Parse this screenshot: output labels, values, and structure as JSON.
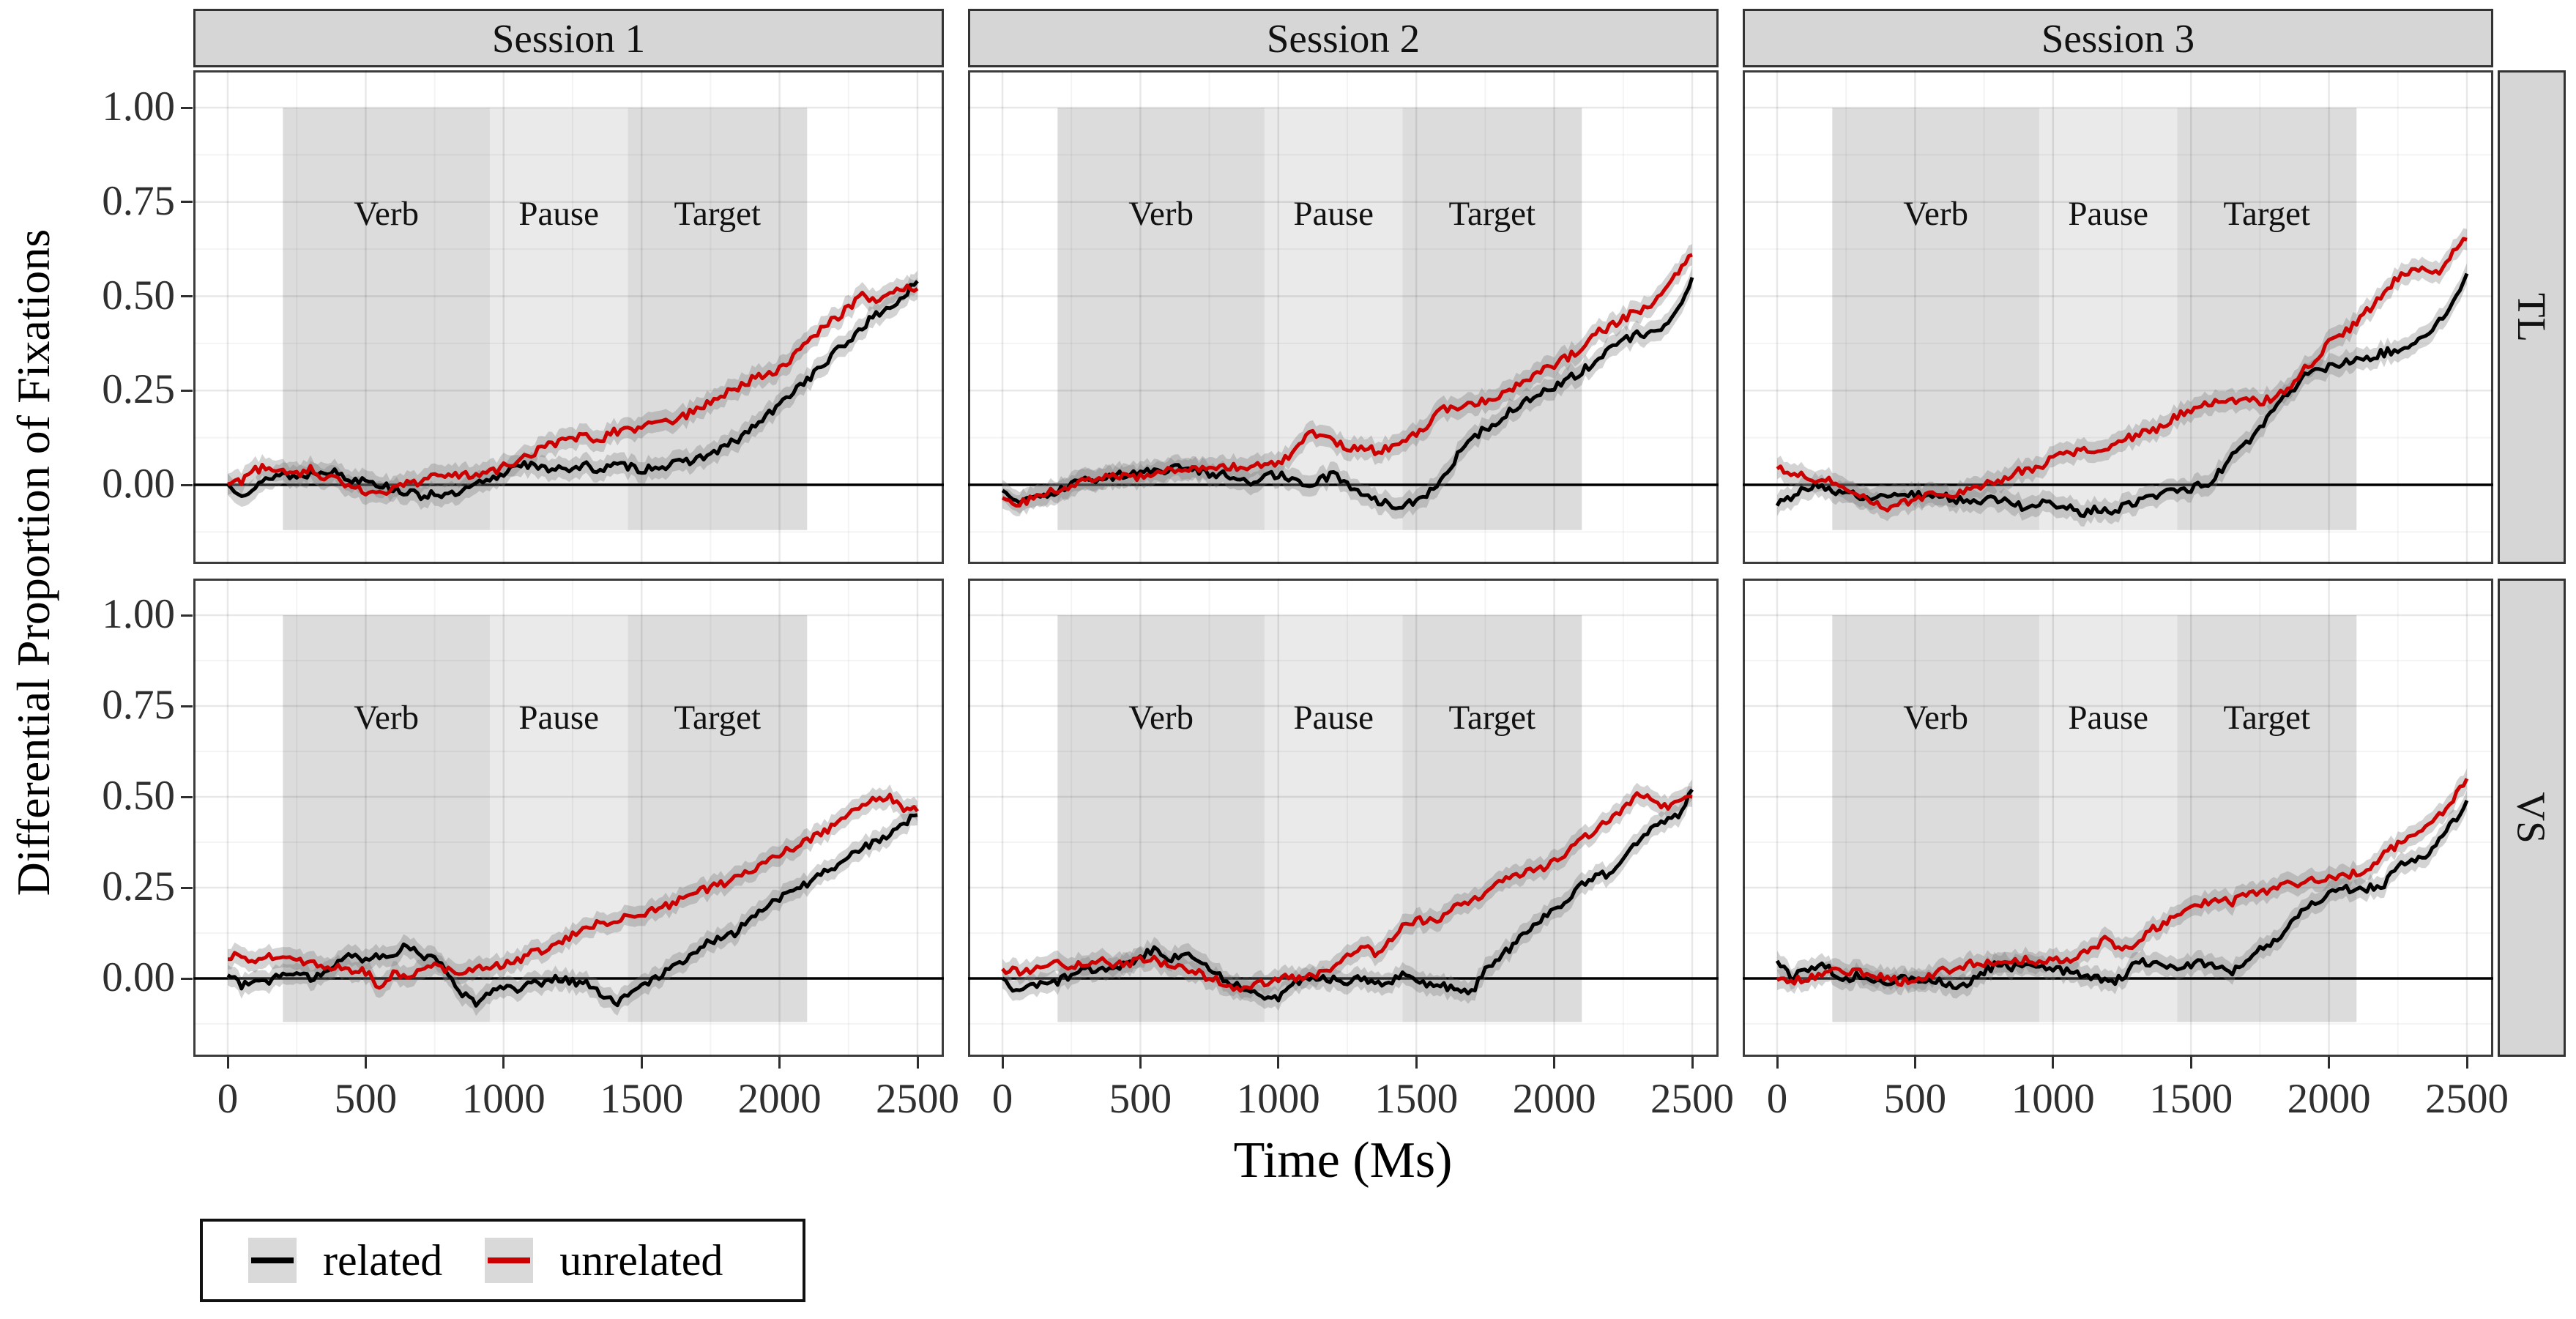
{
  "figure": {
    "y_axis_title": "Differential Proportion of Fixations",
    "x_axis_title": "Time (Ms)"
  },
  "chart_data": {
    "type": "line",
    "title": "",
    "xlabel": "Time (Ms)",
    "ylabel": "Differential Proportion of Fixations",
    "facets": {
      "columns": [
        "Session 1",
        "Session 2",
        "Session 3"
      ],
      "rows": [
        "TL",
        "VS"
      ]
    },
    "x": {
      "label": "Time (Ms)",
      "ticks": [
        "0",
        "500",
        "1000",
        "1500",
        "2000",
        "2500"
      ],
      "tick_values": [
        0,
        500,
        1000,
        1500,
        2000,
        2500
      ],
      "domain": [
        -125,
        2625
      ]
    },
    "y": {
      "label": "Differential Proportion of Fixations",
      "ticks": [
        "1.00",
        "0.75",
        "0.50",
        "0.25",
        "0.00"
      ],
      "tick_values": [
        1.0,
        0.75,
        0.5,
        0.25,
        0.0
      ],
      "domain": [
        -0.21,
        1.1
      ]
    },
    "grid": "on",
    "zero_line": 0,
    "time_step_ms": 50,
    "se_halfwidth": 0.028,
    "regions": [
      {
        "label": "Verb",
        "start": 200,
        "end": 950,
        "shade": "dark"
      },
      {
        "label": "Pause",
        "start": 950,
        "end": 1450,
        "shade": "light"
      },
      {
        "label": "Target",
        "start": 1450,
        "end": 2100,
        "shade": "dark"
      }
    ],
    "region_label_y": 0.72,
    "legend": {
      "position": "bottom-left",
      "entries": [
        {
          "label": "related",
          "color": "#000000"
        },
        {
          "label": "unrelated",
          "color": "#CC0000"
        }
      ]
    },
    "colors": {
      "related": "#000000",
      "unrelated": "#CC0000",
      "ribbon": "#787878",
      "strip_bg": "#d6d6d6",
      "region_dark": "#dcdcdc",
      "region_light": "#eaeaea",
      "zero_line": "#000000"
    },
    "series": [
      {
        "facet_col": "Session 1",
        "facet_row": "TL",
        "name": "related",
        "values": [
          0,
          -0.02,
          -0.01,
          0.02,
          0.03,
          0.02,
          0.03,
          0.04,
          0.03,
          0.01,
          0.02,
          0,
          -0.01,
          -0.02,
          -0.03,
          -0.02,
          -0.03,
          -0.02,
          0,
          0.01,
          0.03,
          0.06,
          0.05,
          0.04,
          0.05,
          0.04,
          0.05,
          0.04,
          0.05,
          0.05,
          0.04,
          0.05,
          0.05,
          0.06,
          0.07,
          0.08,
          0.1,
          0.12,
          0.15,
          0.18,
          0.21,
          0.25,
          0.28,
          0.31,
          0.35,
          0.38,
          0.42,
          0.45,
          0.47,
          0.5,
          0.54
        ]
      },
      {
        "facet_col": "Session 1",
        "facet_row": "TL",
        "name": "unrelated",
        "values": [
          0,
          0.01,
          0.04,
          0.05,
          0.04,
          0.03,
          0.04,
          0.02,
          0.02,
          -0.01,
          -0.02,
          -0.02,
          -0.01,
          0,
          0.01,
          0.02,
          0.02,
          0.03,
          0.02,
          0.03,
          0.05,
          0.06,
          0.08,
          0.1,
          0.11,
          0.12,
          0.13,
          0.12,
          0.14,
          0.15,
          0.15,
          0.16,
          0.17,
          0.18,
          0.2,
          0.22,
          0.24,
          0.26,
          0.28,
          0.29,
          0.31,
          0.34,
          0.38,
          0.41,
          0.44,
          0.47,
          0.5,
          0.49,
          0.51,
          0.52,
          0.52
        ]
      },
      {
        "facet_col": "Session 2",
        "facet_row": "TL",
        "name": "related",
        "values": [
          -0.02,
          -0.04,
          -0.04,
          -0.03,
          -0.02,
          0,
          0.01,
          0.01,
          0.02,
          0.03,
          0.03,
          0.04,
          0.04,
          0.05,
          0.04,
          0.03,
          0.03,
          0.02,
          0.01,
          0.02,
          0.03,
          0.01,
          0,
          0.01,
          0.03,
          0,
          -0.02,
          -0.04,
          -0.05,
          -0.06,
          -0.04,
          -0.02,
          0.02,
          0.08,
          0.12,
          0.15,
          0.17,
          0.2,
          0.22,
          0.24,
          0.26,
          0.28,
          0.3,
          0.33,
          0.36,
          0.38,
          0.4,
          0.4,
          0.42,
          0.46,
          0.55
        ]
      },
      {
        "facet_col": "Session 2",
        "facet_row": "TL",
        "name": "unrelated",
        "values": [
          -0.03,
          -0.05,
          -0.04,
          -0.02,
          -0.01,
          0,
          0.01,
          0.02,
          0.02,
          0.02,
          0.02,
          0.03,
          0.04,
          0.04,
          0.04,
          0.05,
          0.05,
          0.05,
          0.05,
          0.05,
          0.06,
          0.08,
          0.13,
          0.14,
          0.11,
          0.1,
          0.1,
          0.09,
          0.1,
          0.12,
          0.13,
          0.17,
          0.2,
          0.21,
          0.22,
          0.22,
          0.24,
          0.26,
          0.28,
          0.3,
          0.32,
          0.34,
          0.36,
          0.4,
          0.42,
          0.44,
          0.46,
          0.48,
          0.52,
          0.56,
          0.61
        ]
      },
      {
        "facet_col": "Session 3",
        "facet_row": "TL",
        "name": "related",
        "values": [
          -0.05,
          -0.03,
          -0.01,
          0,
          -0.02,
          -0.01,
          -0.04,
          -0.03,
          -0.04,
          -0.02,
          -0.03,
          -0.02,
          -0.03,
          -0.04,
          -0.05,
          -0.04,
          -0.04,
          -0.05,
          -0.06,
          -0.05,
          -0.05,
          -0.06,
          -0.08,
          -0.06,
          -0.07,
          -0.06,
          -0.05,
          -0.03,
          -0.02,
          -0.02,
          -0.01,
          0,
          0.03,
          0.08,
          0.11,
          0.15,
          0.2,
          0.24,
          0.28,
          0.3,
          0.31,
          0.32,
          0.33,
          0.34,
          0.35,
          0.36,
          0.37,
          0.4,
          0.43,
          0.48,
          0.56
        ]
      },
      {
        "facet_col": "Session 3",
        "facet_row": "TL",
        "name": "unrelated",
        "values": [
          0.05,
          0.03,
          0.02,
          0.01,
          0.01,
          -0.01,
          -0.03,
          -0.05,
          -0.07,
          -0.05,
          -0.04,
          -0.02,
          -0.02,
          -0.03,
          -0.01,
          0,
          0.01,
          0.03,
          0.04,
          0.05,
          0.07,
          0.08,
          0.09,
          0.08,
          0.1,
          0.12,
          0.13,
          0.14,
          0.16,
          0.18,
          0.2,
          0.21,
          0.22,
          0.22,
          0.23,
          0.22,
          0.23,
          0.25,
          0.3,
          0.33,
          0.38,
          0.4,
          0.43,
          0.47,
          0.51,
          0.55,
          0.57,
          0.58,
          0.56,
          0.62,
          0.65
        ]
      },
      {
        "facet_col": "Session 1",
        "facet_row": "VS",
        "name": "related",
        "values": [
          0.02,
          -0.02,
          -0.01,
          -0.01,
          0.02,
          0.01,
          0,
          0.02,
          0.04,
          0.07,
          0.05,
          0.06,
          0.07,
          0.09,
          0.06,
          0.07,
          0,
          -0.04,
          -0.07,
          -0.04,
          -0.03,
          -0.03,
          -0.01,
          -0.01,
          0,
          -0.01,
          -0.01,
          -0.04,
          -0.07,
          -0.05,
          -0.02,
          0,
          0.03,
          0.05,
          0.08,
          0.1,
          0.11,
          0.13,
          0.17,
          0.2,
          0.22,
          0.24,
          0.26,
          0.29,
          0.3,
          0.34,
          0.36,
          0.38,
          0.39,
          0.43,
          0.45
        ]
      },
      {
        "facet_col": "Session 1",
        "facet_row": "VS",
        "name": "unrelated",
        "values": [
          0.06,
          0.06,
          0.05,
          0.06,
          0.05,
          0.05,
          0.04,
          0.03,
          0.03,
          0.02,
          0.02,
          -0.03,
          0.02,
          0,
          0.02,
          0.05,
          0.02,
          0.02,
          0.03,
          0.03,
          0.04,
          0.05,
          0.07,
          0.08,
          0.1,
          0.12,
          0.14,
          0.15,
          0.15,
          0.17,
          0.18,
          0.19,
          0.2,
          0.22,
          0.24,
          0.25,
          0.26,
          0.28,
          0.3,
          0.32,
          0.34,
          0.36,
          0.38,
          0.4,
          0.42,
          0.45,
          0.48,
          0.49,
          0.5,
          0.47,
          0.46
        ]
      },
      {
        "facet_col": "Session 2",
        "facet_row": "VS",
        "name": "related",
        "values": [
          -0.01,
          -0.03,
          -0.02,
          -0.01,
          -0.01,
          0.01,
          0.02,
          0.03,
          0.02,
          0.04,
          0.06,
          0.08,
          0.05,
          0.07,
          0.05,
          0.03,
          0,
          -0.02,
          -0.04,
          -0.06,
          -0.05,
          -0.01,
          0,
          0,
          0,
          -0.01,
          0,
          -0.01,
          -0.01,
          0.01,
          -0.01,
          -0.02,
          -0.02,
          -0.03,
          -0.04,
          0.02,
          0.06,
          0.09,
          0.13,
          0.16,
          0.19,
          0.22,
          0.26,
          0.28,
          0.29,
          0.33,
          0.38,
          0.41,
          0.43,
          0.45,
          0.52
        ]
      },
      {
        "facet_col": "Session 2",
        "facet_row": "VS",
        "name": "unrelated",
        "values": [
          0.02,
          0.02,
          0.02,
          0.03,
          0.04,
          0.03,
          0.04,
          0.05,
          0.04,
          0.04,
          0.05,
          0.05,
          0.04,
          0.03,
          0.02,
          0,
          -0.01,
          -0.03,
          -0.02,
          -0.01,
          0,
          0,
          0,
          0.01,
          0.03,
          0.06,
          0.09,
          0.07,
          0.1,
          0.14,
          0.16,
          0.16,
          0.17,
          0.2,
          0.21,
          0.24,
          0.27,
          0.29,
          0.29,
          0.3,
          0.32,
          0.35,
          0.38,
          0.41,
          0.44,
          0.47,
          0.5,
          0.5,
          0.47,
          0.48,
          0.5
        ]
      },
      {
        "facet_col": "Session 3",
        "facet_row": "VS",
        "name": "related",
        "values": [
          0.05,
          0,
          0.02,
          0.04,
          0.02,
          0,
          0.01,
          0,
          -0.01,
          0,
          -0.01,
          0,
          -0.01,
          -0.03,
          -0.01,
          0.02,
          0.04,
          0.03,
          0.03,
          0.04,
          0.03,
          0.02,
          0.01,
          0,
          -0.01,
          0,
          0.05,
          0.04,
          0.03,
          0.03,
          0.04,
          0.04,
          0.03,
          0.02,
          0.05,
          0.08,
          0.1,
          0.14,
          0.18,
          0.21,
          0.23,
          0.25,
          0.24,
          0.25,
          0.26,
          0.31,
          0.33,
          0.33,
          0.38,
          0.43,
          0.49
        ]
      },
      {
        "facet_col": "Session 3",
        "facet_row": "VS",
        "name": "unrelated",
        "values": [
          0,
          -0.01,
          0,
          0.01,
          0.02,
          0.01,
          0.02,
          0.01,
          0,
          -0.01,
          0,
          0.01,
          0.02,
          0.03,
          0.04,
          0.04,
          0.04,
          0.05,
          0.05,
          0.04,
          0.05,
          0.05,
          0.06,
          0.09,
          0.11,
          0.07,
          0.1,
          0.13,
          0.15,
          0.18,
          0.2,
          0.21,
          0.22,
          0.21,
          0.23,
          0.23,
          0.25,
          0.26,
          0.26,
          0.27,
          0.28,
          0.28,
          0.29,
          0.31,
          0.34,
          0.37,
          0.4,
          0.42,
          0.45,
          0.49,
          0.55
        ]
      }
    ]
  }
}
